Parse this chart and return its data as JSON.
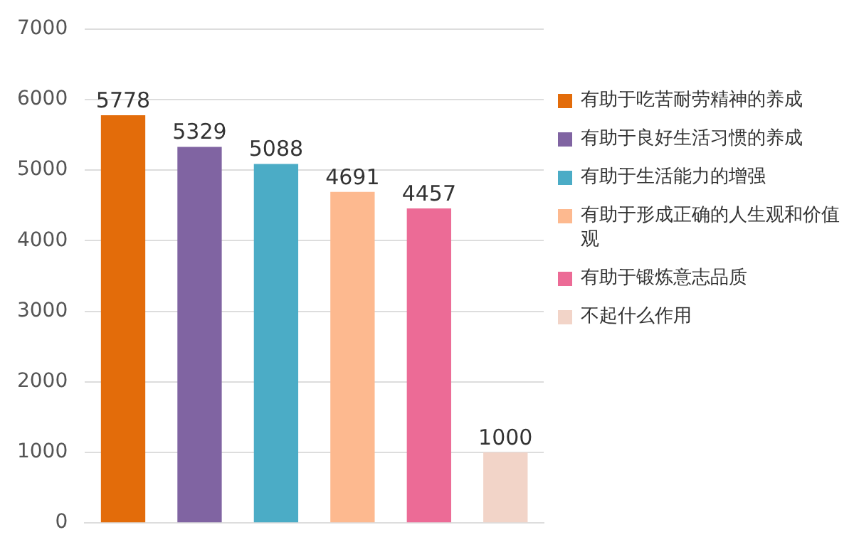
{
  "chart_data": {
    "type": "bar",
    "categories": [
      null,
      null,
      null,
      null,
      null,
      null
    ],
    "series": [
      {
        "name": "有助于吃苦耐劳精神的养成",
        "color": "#e36c0a",
        "values": [
          5778,
          null,
          null,
          null,
          null,
          null
        ]
      },
      {
        "name": "有助于良好生活习惯的养成",
        "color": "#8064a2",
        "values": [
          null,
          5329,
          null,
          null,
          null,
          null
        ]
      },
      {
        "name": "有助于生活能力的增强",
        "color": "#4bacc6",
        "values": [
          null,
          null,
          5088,
          null,
          null,
          null
        ]
      },
      {
        "name": "有助于形成正确的人生观和价值观",
        "color": "#fdb98f",
        "values": [
          null,
          null,
          null,
          4691,
          null,
          null
        ]
      },
      {
        "name": "有助于锻炼意志品质",
        "color": "#ec6b96",
        "values": [
          null,
          null,
          null,
          null,
          4457,
          null
        ]
      },
      {
        "name": "不起什么作用",
        "color": "#f2d4c8",
        "values": [
          null,
          null,
          null,
          null,
          null,
          1000
        ]
      }
    ],
    "ylim": [
      0,
      7000
    ],
    "yticks": [
      0,
      1000,
      2000,
      3000,
      4000,
      5000,
      6000,
      7000
    ],
    "grid": "y",
    "legend": "right",
    "data_labels": true
  }
}
